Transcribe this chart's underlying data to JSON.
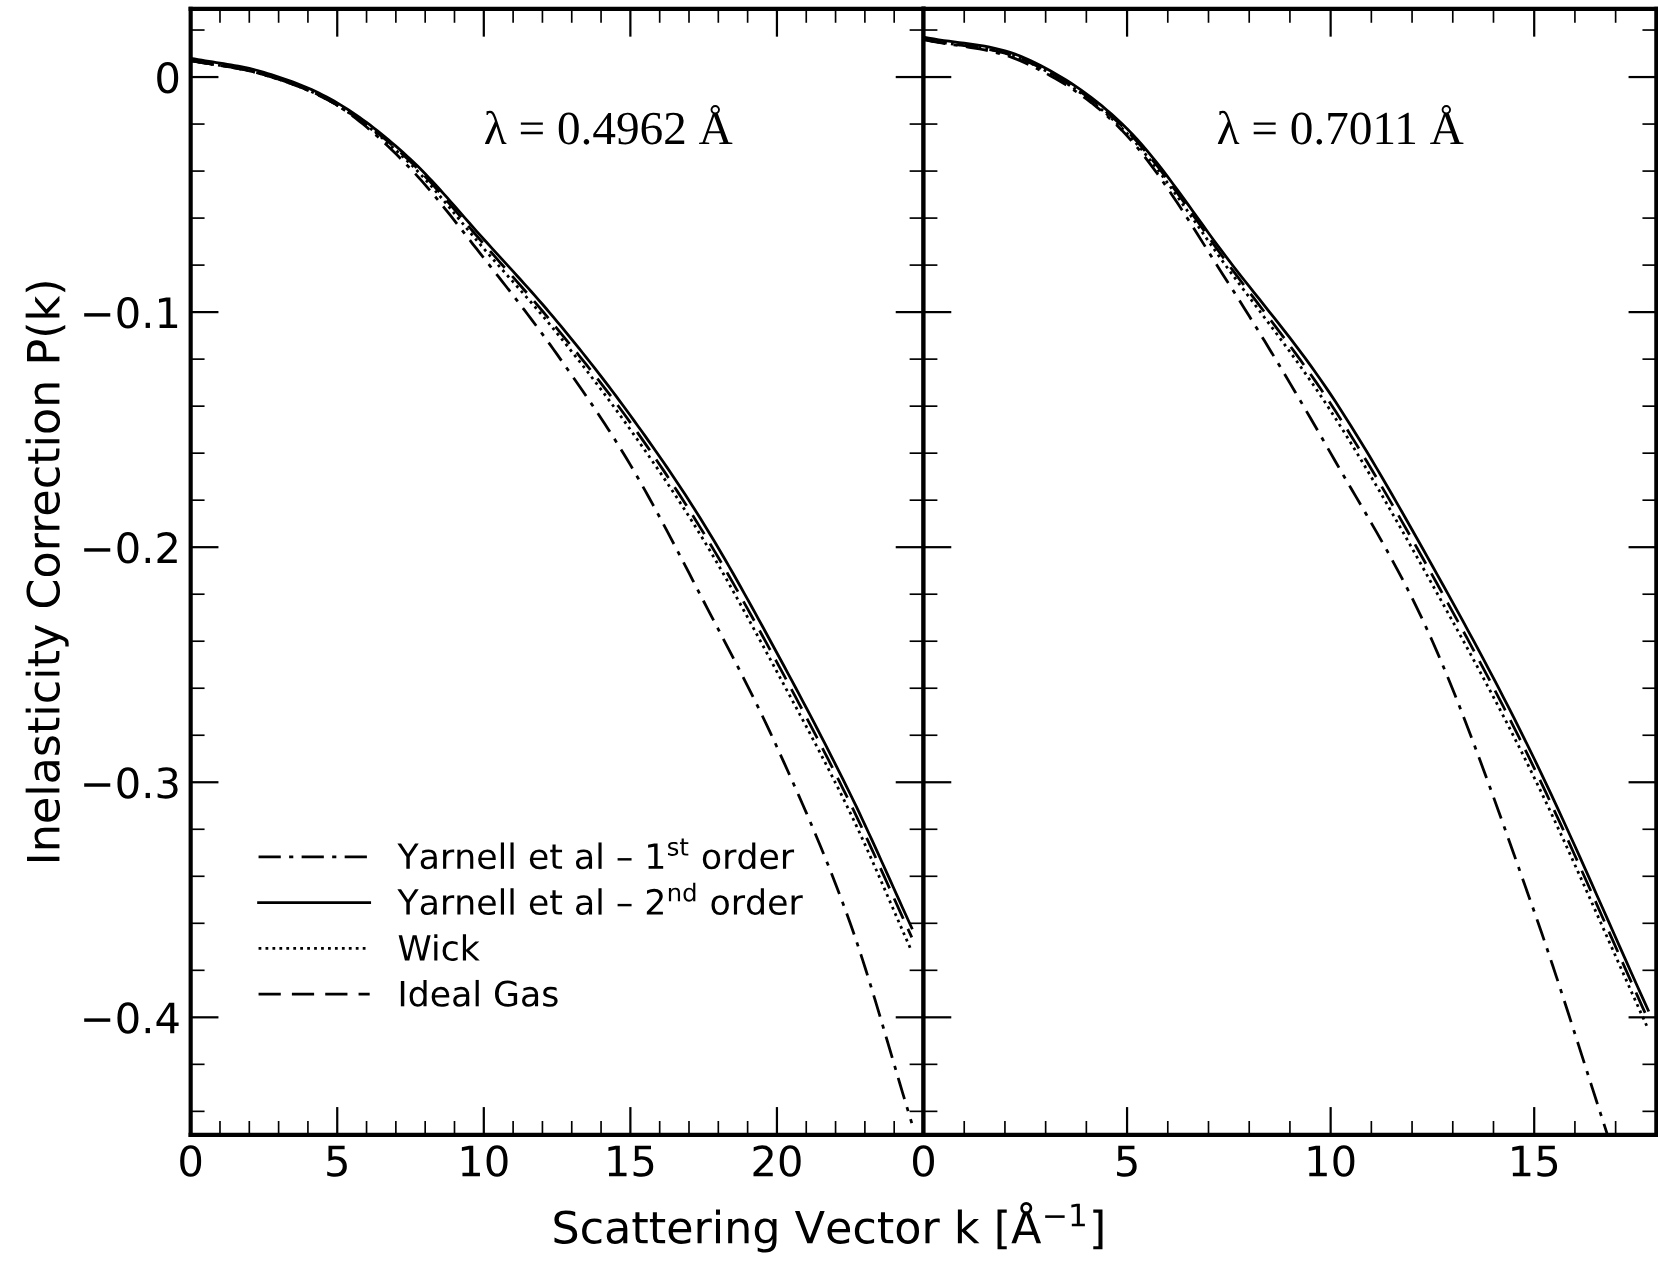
{
  "chart_data": [
    {
      "type": "line",
      "ylabel": "Inelasticity Correction P(k)",
      "xlabel": "Scattering Vector k [Å$^{−1}$]",
      "annotations": [
        "λ = 0.4962 Å"
      ],
      "xlim": [
        0,
        25
      ],
      "xticks": [
        0,
        5,
        10,
        15,
        20
      ],
      "ylim": [
        -0.45,
        0.029
      ],
      "yticks": [
        {
          "value": 0,
          "label": "0"
        },
        {
          "value": -0.1,
          "label": "−0.1"
        },
        {
          "value": -0.2,
          "label": "−0.2"
        },
        {
          "value": -0.3,
          "label": "−0.3"
        },
        {
          "value": -0.4,
          "label": "−0.4"
        }
      ],
      "legend": "bottom left",
      "marker": "none",
      "series": [
        {
          "name": "Yarnell et al – 1$^{st}$ order",
          "color": "#000000",
          "line_style": "dashdot",
          "x": [
            0,
            2.5,
            5,
            7.5,
            10,
            12.5,
            15,
            17.5,
            20,
            22.5,
            24.6
          ],
          "values": [
            0.007,
            0.001,
            -0.012,
            -0.039,
            -0.077,
            -0.118,
            -0.165,
            -0.223,
            -0.285,
            -0.36,
            -0.445
          ]
        },
        {
          "name": "Yarnell et al – 2$^{nd}$ order",
          "color": "#000000",
          "line_style": "solid",
          "x": [
            0,
            2.5,
            5,
            7.5,
            10,
            12.5,
            15,
            17.5,
            20,
            22.5,
            24.6
          ],
          "values": [
            0.008,
            0.002,
            -0.011,
            -0.035,
            -0.069,
            -0.104,
            -0.144,
            -0.19,
            -0.245,
            -0.305,
            -0.362
          ]
        },
        {
          "name": "Wick",
          "color": "#000000",
          "line_style": "dotted",
          "x": [
            0,
            2.5,
            5,
            7.5,
            10,
            12.5,
            15,
            17.5,
            20,
            22.5,
            24.6
          ],
          "values": [
            0.007,
            0.001,
            -0.012,
            -0.037,
            -0.073,
            -0.109,
            -0.15,
            -0.197,
            -0.253,
            -0.313,
            -0.372
          ]
        },
        {
          "name": "Ideal Gas",
          "color": "#000000",
          "line_style": "dashed",
          "x": [
            0,
            2.5,
            5,
            7.5,
            10,
            12.5,
            15,
            17.5,
            20,
            22.5,
            24.6
          ],
          "values": [
            0.007,
            0.001,
            -0.012,
            -0.036,
            -0.071,
            -0.107,
            -0.147,
            -0.194,
            -0.249,
            -0.309,
            -0.366
          ]
        }
      ]
    },
    {
      "type": "line",
      "annotations": [
        "λ = 0.7011 Å"
      ],
      "xlim": [
        0,
        18
      ],
      "xticks": [
        0,
        5,
        10,
        15
      ],
      "ylim": [
        -0.45,
        0.029
      ],
      "yticks": [
        {
          "value": 0,
          "label": null
        },
        {
          "value": -0.1,
          "label": null
        },
        {
          "value": -0.2,
          "label": null
        },
        {
          "value": -0.3,
          "label": null
        },
        {
          "value": -0.4,
          "label": null
        }
      ],
      "tick_labels": "x",
      "marker": "none",
      "series": [
        {
          "color": "#000000",
          "line_style": "dashdot",
          "x": [
            0,
            2.5,
            5,
            7.5,
            10,
            12.5,
            15,
            16.8
          ],
          "values": [
            0.016,
            0.006,
            -0.025,
            -0.088,
            -0.16,
            -0.24,
            -0.355,
            -0.45
          ]
        },
        {
          "color": "#000000",
          "line_style": "solid",
          "x": [
            0,
            2.5,
            5,
            7.5,
            10,
            12.5,
            15,
            17.8
          ],
          "values": [
            0.017,
            0.008,
            -0.022,
            -0.078,
            -0.135,
            -0.208,
            -0.29,
            -0.397
          ]
        },
        {
          "color": "#000000",
          "line_style": "dotted",
          "x": [
            0,
            2.5,
            5,
            7.5,
            10,
            12.5,
            15,
            17.8
          ],
          "values": [
            0.016,
            0.007,
            -0.024,
            -0.082,
            -0.142,
            -0.216,
            -0.298,
            -0.405
          ]
        },
        {
          "color": "#000000",
          "line_style": "dashed",
          "x": [
            0,
            2.5,
            5,
            7.5,
            10,
            12.5,
            15,
            17.8
          ],
          "values": [
            0.016,
            0.007,
            -0.023,
            -0.08,
            -0.139,
            -0.212,
            -0.294,
            -0.401
          ]
        }
      ]
    }
  ]
}
